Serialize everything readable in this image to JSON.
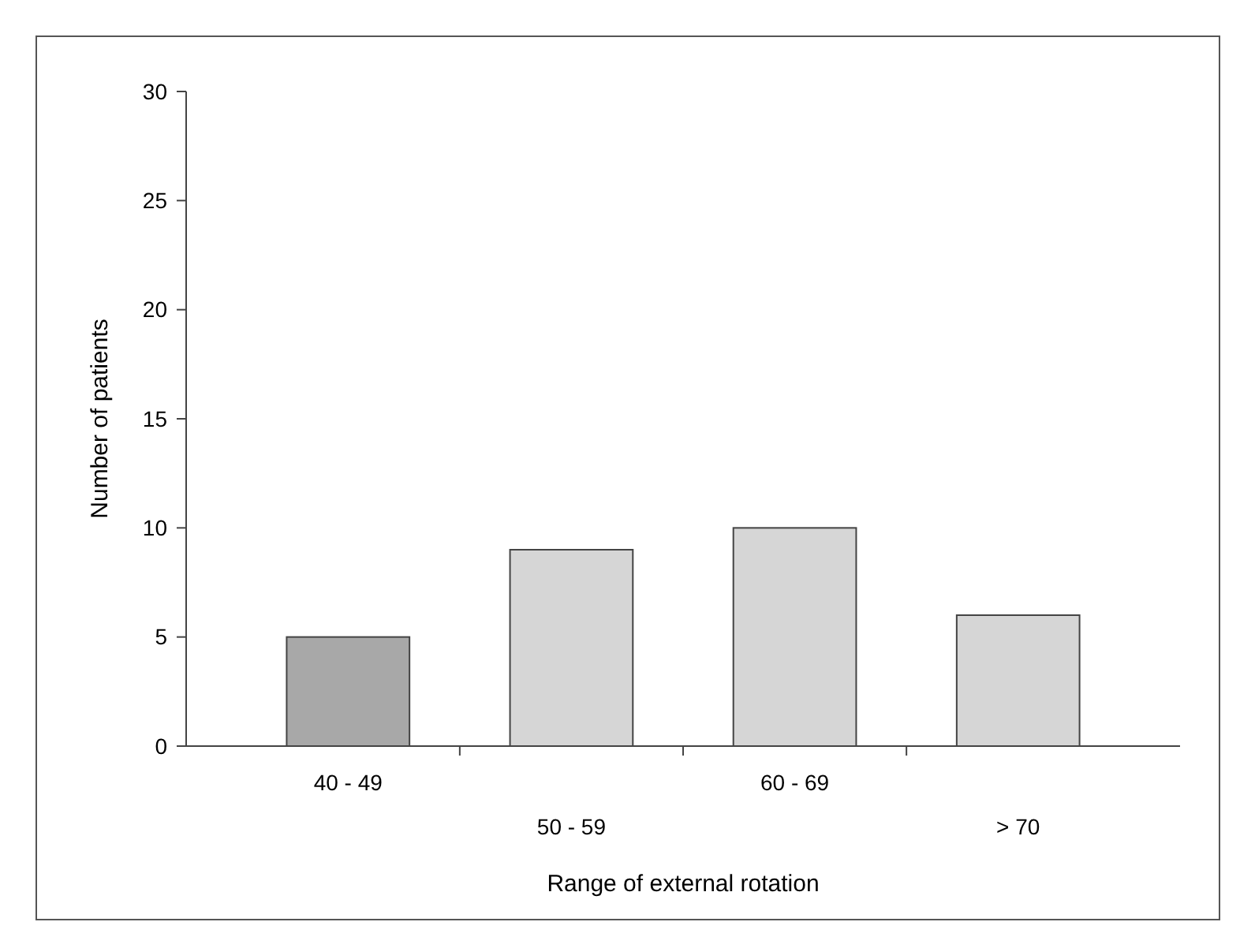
{
  "chart_data": {
    "type": "bar",
    "xlabel": "Range of external rotation",
    "ylabel": "Number of patients",
    "categories": [
      "40 - 49",
      "50 - 59",
      "60 - 69",
      "> 70"
    ],
    "values": [
      5,
      9,
      10,
      6
    ],
    "colors": [
      "#a8a8a8",
      "#d6d6d6",
      "#d6d6d6",
      "#d6d6d6"
    ],
    "ylim": [
      0,
      30
    ],
    "yticks": [
      0,
      5,
      10,
      15,
      20,
      25,
      30
    ],
    "grid": false
  }
}
